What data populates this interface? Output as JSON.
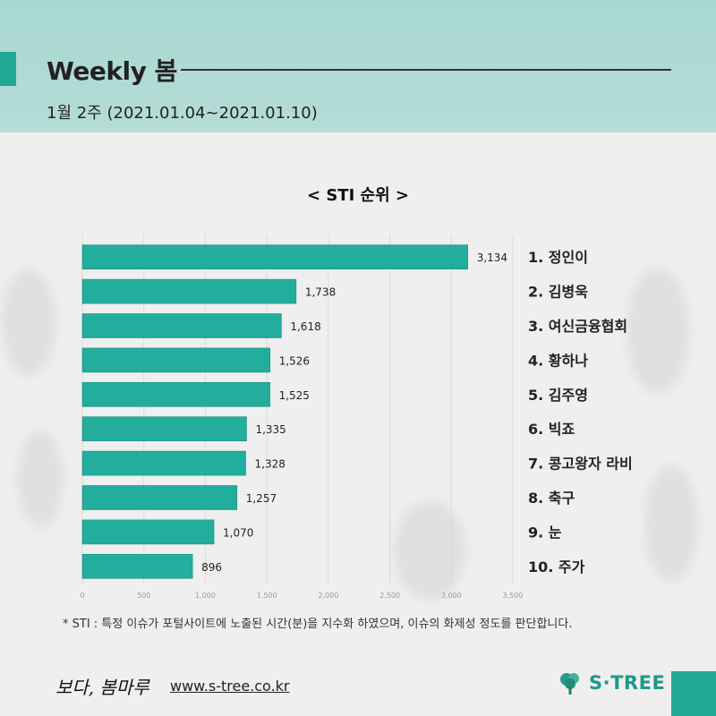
{
  "header": {
    "title": "Weekly 봄",
    "subtitle": "1월 2주 (2021.01.04~2021.01.10)"
  },
  "chart_data": {
    "type": "bar",
    "orientation": "horizontal",
    "title": "< STI 순위 >",
    "categories": [
      "1. 정인이",
      "2. 김병욱",
      "3. 여신금융협회",
      "4. 황하나",
      "5. 김주영",
      "6. 빅죠",
      "7. 콩고왕자 라비",
      "8. 축구",
      "9. 눈",
      "10. 주가"
    ],
    "values": [
      3134,
      1738,
      1618,
      1526,
      1525,
      1335,
      1328,
      1257,
      1070,
      896
    ],
    "value_labels": [
      "3,134",
      "1,738",
      "1,618",
      "1,526",
      "1,525",
      "1,335",
      "1,328",
      "1,257",
      "1,070",
      "896"
    ],
    "xlim": [
      0,
      3500
    ],
    "xticks": [
      "0",
      "500",
      "1,000",
      "1,500",
      "2,000",
      "2,500",
      "3,000",
      "3,500"
    ],
    "grid": true,
    "bar_color": "#22ad9c"
  },
  "footnote": "* STI : 특정 이슈가 포털사이트에 노출된 시간(분)을 지수화 하였으며, 이슈의 화제성 정도를 판단합니다.",
  "footer": {
    "brand_script": "보다, 봄마루",
    "url": "www.s-tree.co.kr",
    "logo_text": "S·TREE"
  },
  "colors": {
    "accent": "#22a896",
    "header_bg": "#b0dad5"
  }
}
